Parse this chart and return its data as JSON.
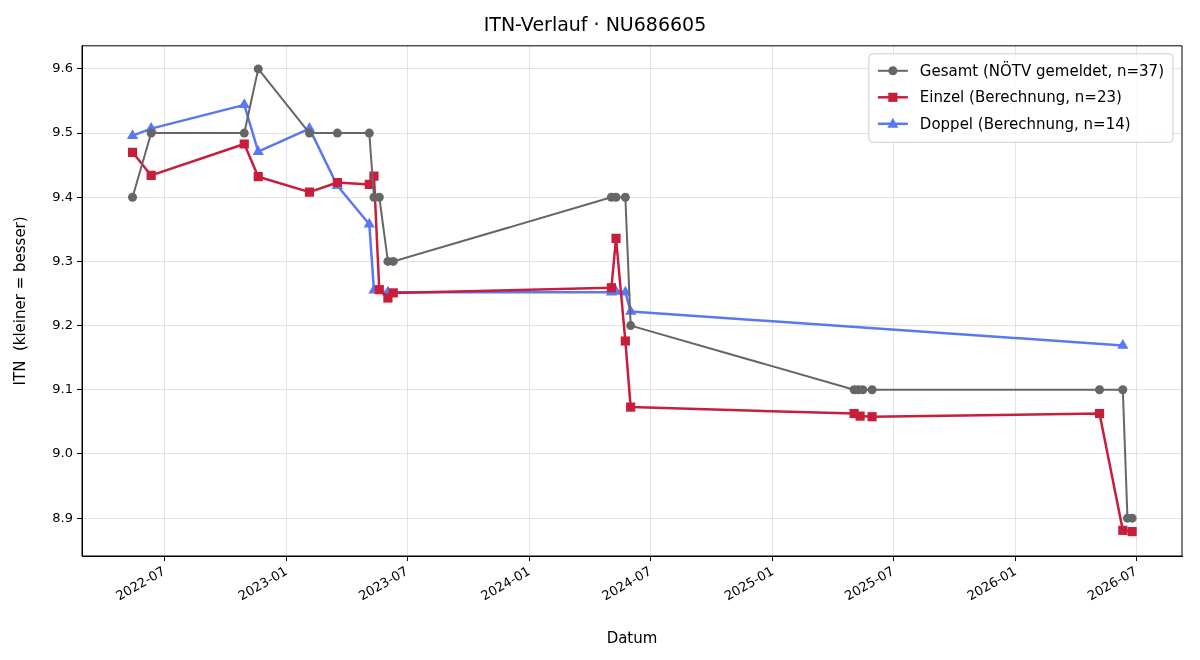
{
  "chart_data": {
    "type": "line",
    "title": "ITN-Verlauf · NU686605",
    "xlabel": "Datum",
    "ylabel": "ITN  (kleiner = besser)",
    "xlim": [
      "2022-02-27",
      "2026-09-08"
    ],
    "xticks": [
      "2022-07",
      "2023-01",
      "2023-07",
      "2024-01",
      "2024-07",
      "2025-01",
      "2025-07",
      "2026-01",
      "2026-07"
    ],
    "ylim": [
      8.841,
      9.636
    ],
    "yticks": [
      8.9,
      {
        "value": 9,
        "label": "9.0"
      },
      9.1,
      9.2,
      9.3,
      9.4,
      9.5,
      9.6
    ],
    "grid": true,
    "legend": "top right",
    "series": [
      {
        "name": "Gesamt (NÖTV gemeldet, n=37)",
        "color": "#666666",
        "marker": "circle",
        "x": [
          "2022-05-14",
          "2022-06-11",
          "2022-10-29",
          "2022-11-19",
          "2023-02-04",
          "2023-03-18",
          "2023-05-05",
          "2023-05-12",
          "2023-05-20",
          "2023-06-02",
          "2023-06-10",
          "2024-05-03",
          "2024-05-10",
          "2024-05-24",
          "2024-06-01",
          "2025-05-03",
          "2025-05-09",
          "2025-05-16",
          "2025-05-30",
          "2026-05-07",
          "2026-06-11",
          "2026-06-18",
          "2026-06-25"
        ],
        "values": [
          9.4,
          9.5,
          9.5,
          9.6,
          9.5,
          9.5,
          9.5,
          9.4,
          9.4,
          9.3,
          9.3,
          9.4,
          9.4,
          9.4,
          9.2,
          9.1,
          9.1,
          9.1,
          9.1,
          9.1,
          9.1,
          8.9,
          8.9
        ]
      },
      {
        "name": "Einzel (Berechnung, n=23)",
        "color": "#c81e3c",
        "marker": "square",
        "x": [
          "2022-05-14",
          "2022-06-11",
          "2022-10-29",
          "2022-11-19",
          "2023-02-04",
          "2023-03-18",
          "2023-05-05",
          "2023-05-12",
          "2023-05-20",
          "2023-06-02",
          "2023-06-10",
          "2024-05-03",
          "2024-05-10",
          "2024-05-24",
          "2024-06-01",
          "2025-05-03",
          "2025-05-12",
          "2025-05-30",
          "2026-05-07",
          "2026-06-11",
          "2026-06-25"
        ],
        "values": [
          9.47,
          9.434,
          9.483,
          9.432,
          9.408,
          9.423,
          9.42,
          9.433,
          9.256,
          9.243,
          9.251,
          9.259,
          9.336,
          9.176,
          9.073,
          9.063,
          9.059,
          9.058,
          9.063,
          8.881,
          8.879
        ]
      },
      {
        "name": "Doppel (Berechnung, n=14)",
        "color": "#5a78f0",
        "marker": "triangle",
        "x": [
          "2022-05-14",
          "2022-06-11",
          "2022-10-29",
          "2022-11-19",
          "2023-02-04",
          "2023-03-18",
          "2023-05-05",
          "2023-05-12",
          "2023-06-02",
          "2024-05-03",
          "2024-05-10",
          "2024-05-24",
          "2024-06-01",
          "2026-06-11"
        ],
        "values": [
          9.496,
          9.507,
          9.544,
          9.471,
          9.507,
          9.418,
          9.358,
          9.255,
          9.252,
          9.252,
          9.253,
          9.252,
          9.222,
          9.169
        ]
      }
    ]
  }
}
